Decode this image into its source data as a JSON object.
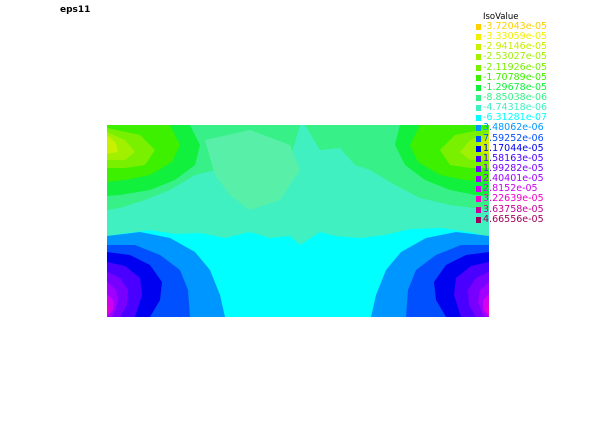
{
  "title": "eps11",
  "chart_data": {
    "type": "heatmap",
    "title": "eps11",
    "legend_title": "IsoValue",
    "legend_position": "top-right",
    "levels": [
      {
        "label": "-3.72043e-05",
        "value": -3.72043e-05,
        "color": "#ffd000"
      },
      {
        "label": "-3.33059e-05",
        "value": -3.33059e-05,
        "color": "#f2f000"
      },
      {
        "label": "-2.94146e-05",
        "value": -2.94146e-05,
        "color": "#c8f000"
      },
      {
        "label": "-2.53027e-05",
        "value": -2.53027e-05,
        "color": "#a0f000"
      },
      {
        "label": "-2.11926e-05",
        "value": -2.11926e-05,
        "color": "#78f000"
      },
      {
        "label": "-1.70789e-05",
        "value": -1.70789e-05,
        "color": "#3cf000"
      },
      {
        "label": "-1.29678e-05",
        "value": -1.29678e-05,
        "color": "#10f03c"
      },
      {
        "label": "-8.85038e-06",
        "value": -8.85038e-06,
        "color": "#38f088"
      },
      {
        "label": "-4.74318e-06",
        "value": -4.74318e-06,
        "color": "#40f0c0"
      },
      {
        "label": "-6.31281e-07",
        "value": -6.31281e-07,
        "color": "#00ffff"
      },
      {
        "label": "3.48062e-06",
        "value": 3.48062e-06,
        "color": "#0096ff"
      },
      {
        "label": "7.59252e-06",
        "value": 7.59252e-06,
        "color": "#0050ff"
      },
      {
        "label": "1.17044e-05",
        "value": 1.17044e-05,
        "color": "#0000f0"
      },
      {
        "label": "1.58163e-05",
        "value": 1.58163e-05,
        "color": "#4a00ff"
      },
      {
        "label": "1.99282e-05",
        "value": 1.99282e-05,
        "color": "#7800ff"
      },
      {
        "label": "2.40401e-05",
        "value": 2.40401e-05,
        "color": "#a000ff"
      },
      {
        "label": "2.8152e-05",
        "value": 2.8152e-05,
        "color": "#d000f0"
      },
      {
        "label": "3.22639e-05",
        "value": 3.22639e-05,
        "color": "#f000c8"
      },
      {
        "label": "3.63758e-05",
        "value": 3.63758e-05,
        "color": "#c80096"
      },
      {
        "label": "4.66556e-05",
        "value": 4.66556e-05,
        "color": "#a0005a"
      }
    ],
    "grid": false
  }
}
